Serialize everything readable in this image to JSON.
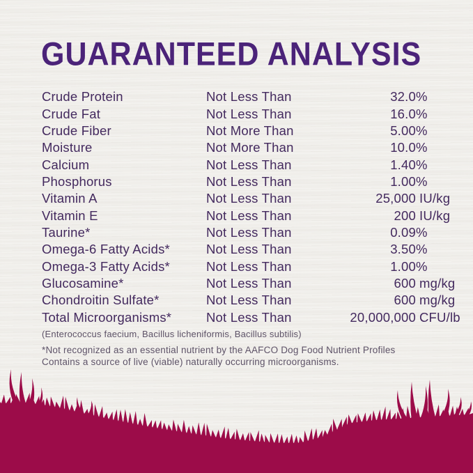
{
  "title": "GUARANTEED ANALYSIS",
  "table": {
    "rows": [
      {
        "label": "Crude Protein",
        "qualifier": "Not Less Than",
        "num": "32.0",
        "unit": "%"
      },
      {
        "label": "Crude Fat",
        "qualifier": "Not Less Than",
        "num": "16.0",
        "unit": "%"
      },
      {
        "label": "Crude Fiber",
        "qualifier": "Not More Than",
        "num": "5.00",
        "unit": "%"
      },
      {
        "label": "Moisture",
        "qualifier": "Not More Than",
        "num": "10.0",
        "unit": "%"
      },
      {
        "label": "Calcium",
        "qualifier": "Not Less Than",
        "num": "1.40",
        "unit": "%"
      },
      {
        "label": "Phosphorus",
        "qualifier": "Not Less Than",
        "num": "1.00",
        "unit": "%"
      },
      {
        "label": "Vitamin A",
        "qualifier": "Not Less Than",
        "num": "25,000",
        "unit": "IU/kg"
      },
      {
        "label": "Vitamin E",
        "qualifier": "Not Less Than",
        "num": "200",
        "unit": "IU/kg"
      },
      {
        "label": "Taurine*",
        "qualifier": "Not Less Than",
        "num": "0.09",
        "unit": "%"
      },
      {
        "label": "Omega-6 Fatty Acids*",
        "qualifier": "Not Less Than",
        "num": "3.50",
        "unit": "%"
      },
      {
        "label": "Omega-3 Fatty Acids*",
        "qualifier": "Not Less Than",
        "num": "1.00",
        "unit": "%"
      },
      {
        "label": "Glucosamine*",
        "qualifier": "Not Less Than",
        "num": "600",
        "unit": "mg/kg"
      },
      {
        "label": "Chondroitin Sulfate*",
        "qualifier": "Not Less Than",
        "num": "600",
        "unit": "mg/kg"
      },
      {
        "label": "Total Microorganisms*",
        "qualifier": "Not Less Than",
        "num": "20,000,000",
        "unit": "CFU/lb"
      }
    ]
  },
  "microorganisms_note": "(Enterococcus faecium, Bacillus licheniformis, Bacillus subtilis)",
  "footnote_line1": "*Not recognized as an essential nutrient by the AAFCO Dog Food Nutrient Profiles",
  "footnote_line2": "Contains a source of live (viable) naturally occurring microorganisms.",
  "colors": {
    "background": "#f5f4f1",
    "title_purple": "#4b2379",
    "body_purple": "#43295e",
    "note_gray_purple": "#5e5368",
    "grass_raspberry": "#9c0c49"
  }
}
